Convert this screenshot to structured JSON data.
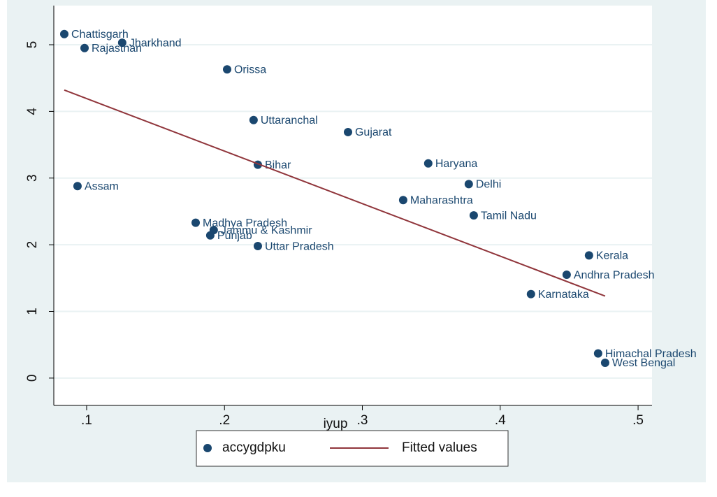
{
  "chart_data": {
    "type": "scatter",
    "x_label": "iyup",
    "xlim": [
      0.0762,
      0.5101
    ],
    "ylim": [
      -0.41,
      5.587
    ],
    "xticks": [
      {
        "value": 0.1,
        "label": ".1"
      },
      {
        "value": 0.2,
        "label": ".2"
      },
      {
        "value": 0.3,
        "label": ".3"
      },
      {
        "value": 0.4,
        "label": ".4"
      },
      {
        "value": 0.5,
        "label": ".5"
      }
    ],
    "yticks": [
      0,
      1,
      2,
      3,
      4,
      5
    ],
    "grid": true,
    "legend_position": "bottom",
    "series": [
      {
        "name": "accygdpku",
        "color": "#1a476f",
        "mode": "markers",
        "labels": [
          "Chattisgarh",
          "Jharkhand",
          "Rajasthan",
          "Orissa",
          "Uttaranchal",
          "Gujarat",
          "Bihar",
          "Haryana",
          "Assam",
          "Delhi",
          "Maharashtra",
          "Tamil Nadu",
          "Madhya Pradesh",
          "Jammu & Kashmir",
          "Punjab",
          "Uttar Pradesh",
          "Kerala",
          "Andhra Pradesh",
          "Karnataka",
          "Himachal Pradesh",
          "West Bengal"
        ],
        "x": [
          0.0838,
          0.1258,
          0.0985,
          0.2019,
          0.2211,
          0.2896,
          0.2242,
          0.3478,
          0.0934,
          0.3772,
          0.3296,
          0.3808,
          0.1791,
          0.1922,
          0.1897,
          0.2242,
          0.4644,
          0.4482,
          0.4223,
          0.471,
          0.4761
        ],
        "values": [
          5.16,
          5.03,
          4.95,
          4.63,
          3.87,
          3.69,
          3.2,
          3.22,
          2.88,
          2.91,
          2.67,
          2.44,
          2.33,
          2.22,
          2.14,
          1.98,
          1.84,
          1.55,
          1.26,
          0.37,
          0.23
        ]
      },
      {
        "name": "Fitted values",
        "color": "#90353b",
        "mode": "line",
        "x": [
          0.0838,
          0.4761
        ],
        "values": [
          4.32,
          1.23
        ]
      }
    ]
  }
}
